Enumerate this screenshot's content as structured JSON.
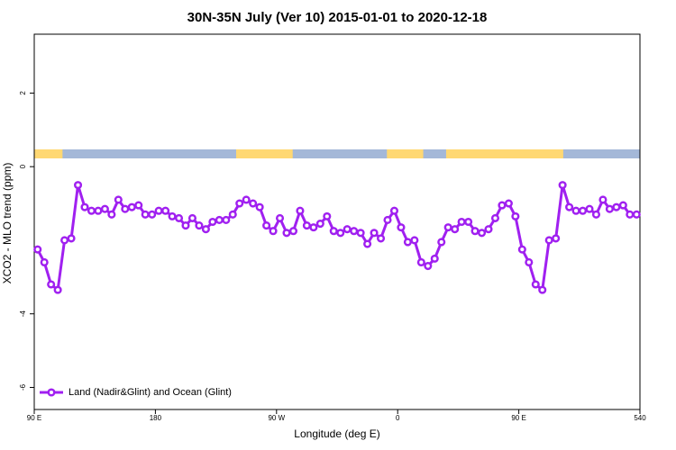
{
  "chart_data": {
    "type": "line",
    "title": "30N-35N July (Ver 10)   2015-01-01 to 2020-12-18",
    "x_label": "Longitude (deg E)",
    "y_label": "XCO2 - MLO trend (ppm)",
    "xlim": [
      90,
      540
    ],
    "ylim": [
      -6.6,
      3.6
    ],
    "xticks": [
      {
        "value": 90,
        "label": "90 E"
      },
      180,
      {
        "value": 270,
        "label": "90 W"
      },
      {
        "value": 360,
        "label": "0"
      },
      {
        "value": 450,
        "label": "90 E"
      },
      540
    ],
    "yticks": [
      -6,
      -4,
      0,
      2
    ],
    "legend": "bottom-left",
    "surface_strip": {
      "ocean_color": "#a4b8d8",
      "land_color": "#ffd873",
      "land_regions": [
        [
          90,
          111
        ],
        [
          240,
          282
        ],
        [
          352,
          379
        ],
        [
          396,
          483
        ]
      ]
    },
    "x": [
      92.5,
      97.5,
      102.5,
      107.5,
      112.5,
      117.5,
      122.5,
      127.5,
      132.5,
      137.5,
      142.5,
      147.5,
      152.5,
      157.5,
      162.5,
      167.5,
      172.5,
      177.5,
      182.5,
      187.5,
      192.5,
      197.5,
      202.5,
      207.5,
      212.5,
      217.5,
      222.5,
      227.5,
      232.5,
      237.5,
      242.5,
      247.5,
      252.5,
      257.5,
      262.5,
      267.5,
      272.5,
      277.5,
      282.5,
      287.5,
      292.5,
      297.5,
      302.5,
      307.5,
      312.5,
      317.5,
      322.5,
      327.5,
      332.5,
      337.5,
      342.5,
      347.5,
      352.5,
      357.5,
      362.5,
      367.5,
      372.5,
      377.5,
      382.5,
      387.5,
      392.5,
      397.5,
      402.5,
      407.5,
      412.5,
      417.5,
      422.5,
      427.5,
      432.5,
      437.5,
      442.5,
      447.5,
      452.5,
      457.5,
      462.5,
      467.5,
      472.5,
      477.5,
      482.5,
      487.5,
      492.5,
      497.5,
      502.5,
      507.5,
      512.5,
      517.5,
      522.5,
      527.5,
      532.5,
      537.5
    ],
    "series": [
      {
        "name": "Land (Nadir&Glint) and Ocean (Glint)",
        "color": "#a020f0",
        "values": [
          -2.25,
          -2.6,
          -3.2,
          -3.35,
          -2.0,
          -1.95,
          -0.5,
          -1.1,
          -1.2,
          -1.2,
          -1.15,
          -1.3,
          -0.9,
          -1.15,
          -1.1,
          -1.05,
          -1.3,
          -1.3,
          -1.2,
          -1.2,
          -1.35,
          -1.4,
          -1.6,
          -1.4,
          -1.6,
          -1.7,
          -1.5,
          -1.45,
          -1.45,
          -1.3,
          -1.0,
          -0.9,
          -1.0,
          -1.1,
          -1.6,
          -1.75,
          -1.4,
          -1.8,
          -1.75,
          -1.2,
          -1.6,
          -1.65,
          -1.55,
          -1.35,
          -1.75,
          -1.8,
          -1.7,
          -1.75,
          -1.8,
          -2.1,
          -1.8,
          -1.95,
          -1.45,
          -1.2,
          -1.65,
          -2.05,
          -2.0,
          -2.6,
          -2.7,
          -2.5,
          -2.05,
          -1.65,
          -1.7,
          -1.5,
          -1.5,
          -1.75,
          -1.8,
          -1.7,
          -1.4,
          -1.05,
          -1.0,
          -1.35,
          -2.25,
          -2.6,
          -3.2,
          -3.35,
          -2.0,
          -1.95,
          -0.5,
          -1.1,
          -1.2,
          -1.2,
          -1.15,
          -1.3,
          -0.9,
          -1.15,
          -1.1,
          -1.05,
          -1.3,
          -1.3
        ]
      }
    ]
  }
}
